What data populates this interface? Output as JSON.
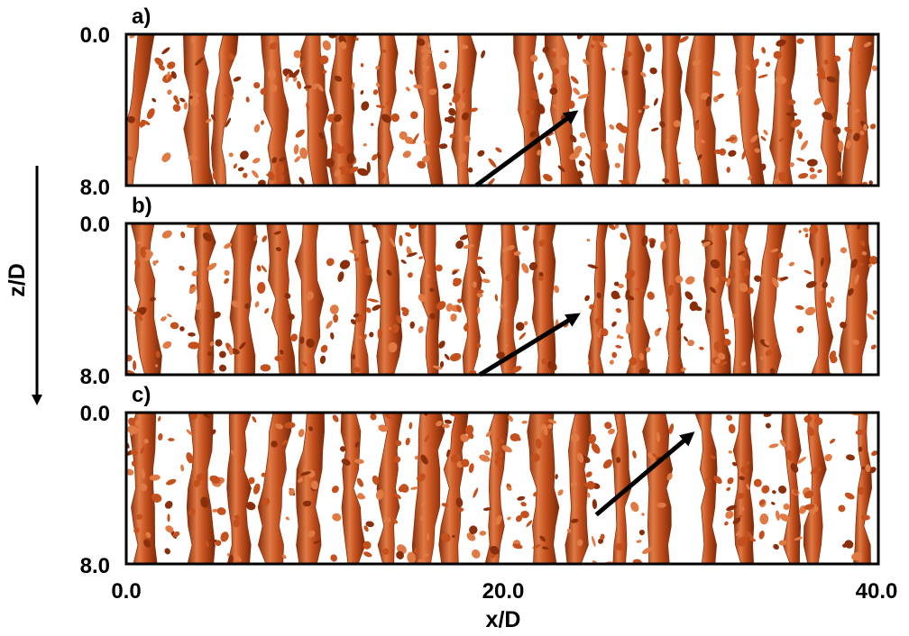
{
  "panels": [
    {
      "label": "a)",
      "y_top_tick": "0.0",
      "y_bottom_tick": "8.0",
      "arrow": {
        "from_x": 18.6,
        "from_z": 8.0,
        "to_x": 23.8,
        "to_z": 4.2
      }
    },
    {
      "label": "b)",
      "y_top_tick": "0.0",
      "y_bottom_tick": "8.0",
      "arrow": {
        "from_x": 18.8,
        "from_z": 8.0,
        "to_x": 23.9,
        "to_z": 4.9
      }
    },
    {
      "label": "c)",
      "y_top_tick": "0.0",
      "y_bottom_tick": "8.0",
      "arrow": {
        "from_x": 25.0,
        "from_z": 5.4,
        "to_x": 30.0,
        "to_z": 1.2
      }
    }
  ],
  "x_axis": {
    "label": "x/D",
    "min": 0,
    "max": 40,
    "ticks": [
      "0.0",
      "20.0",
      "40.0"
    ]
  },
  "z_axis": {
    "label": "z/D",
    "min": 0,
    "max": 8
  },
  "colors": {
    "vortex": "#c4501e",
    "vortex_dark": "#8a2f0c",
    "vortex_light": "#e07a45",
    "frame": "#000000",
    "arrow": "#000000"
  }
}
